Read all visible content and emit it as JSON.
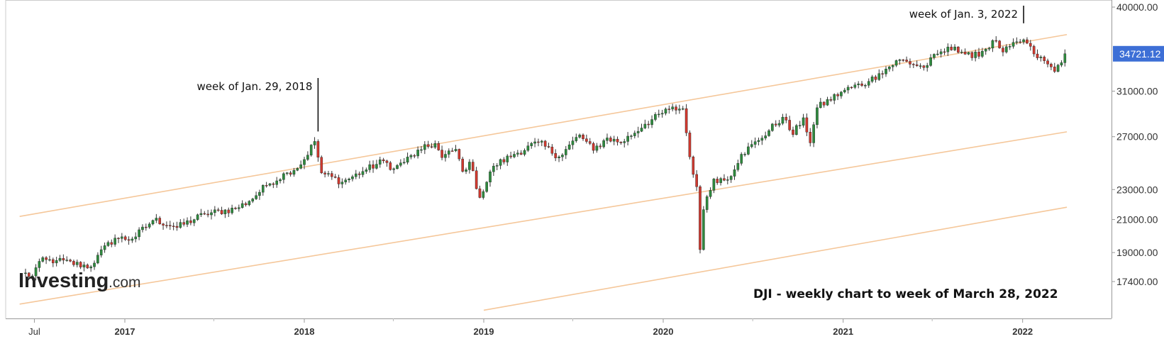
{
  "chart_data": {
    "type": "candlestick",
    "title": "DJI - weekly chart to week of March 28, 2022",
    "interval": "weekly",
    "y_scale": "log",
    "ylim": [
      16000,
      41000
    ],
    "y_ticks": [
      "40000.00",
      "31000.00",
      "27000.00",
      "23000.00",
      "21000.00",
      "19000.00",
      "17400.00"
    ],
    "x_ticks": [
      {
        "label": "Jul",
        "date": "2016-07-01",
        "major": false
      },
      {
        "label": "2017",
        "date": "2017-01-01",
        "major": true
      },
      {
        "label": "2018",
        "date": "2018-01-01",
        "major": true
      },
      {
        "label": "2019",
        "date": "2019-01-01",
        "major": true
      },
      {
        "label": "2020",
        "date": "2020-01-01",
        "major": true
      },
      {
        "label": "2021",
        "date": "2021-01-01",
        "major": true
      },
      {
        "label": "2022",
        "date": "2022-01-01",
        "major": true
      }
    ],
    "x_minor_ticks": [
      "2017-07-01",
      "2018-07-01",
      "2019-07-01",
      "2020-07-01",
      "2021-07-01"
    ],
    "last_price": {
      "value": 34721.12,
      "label": "34721.12",
      "color": "#3d6fd6"
    },
    "annotations": [
      {
        "text": "week of Jan. 29, 2018",
        "date": "2018-01-29",
        "value": 26616
      },
      {
        "text": "week of Jan. 3, 2022",
        "date": "2022-01-03",
        "value": 36953
      }
    ],
    "trendlines": [
      {
        "name": "upper",
        "start": {
          "date": "2016-06-01",
          "value": 21200
        },
        "end": {
          "date": "2022-04-01",
          "value": 36800
        },
        "color": "#f5c79a"
      },
      {
        "name": "middle",
        "start": {
          "date": "2016-06-01",
          "value": 16250
        },
        "end": {
          "date": "2022-04-01",
          "value": 27400
        },
        "color": "#f5c79a"
      },
      {
        "name": "lower",
        "start": {
          "date": "2019-01-01",
          "value": 15950
        },
        "end": {
          "date": "2022-04-01",
          "value": 21800
        },
        "color": "#f5c79a"
      }
    ],
    "colors": {
      "up": "#2e8b3e",
      "down": "#d0392f",
      "wick": "#333333"
    },
    "series": [
      {
        "name": "DJI",
        "anchors": [
          [
            "2016-06-06",
            17850
          ],
          [
            "2016-06-27",
            17700
          ],
          [
            "2016-07-11",
            18500
          ],
          [
            "2016-08-15",
            18550
          ],
          [
            "2016-10-24",
            18200
          ],
          [
            "2016-11-07",
            18850
          ],
          [
            "2016-12-12",
            19850
          ],
          [
            "2017-01-16",
            19800
          ],
          [
            "2017-03-01",
            21000
          ],
          [
            "2017-04-17",
            20500
          ],
          [
            "2017-06-12",
            21350
          ],
          [
            "2017-08-14",
            21700
          ],
          [
            "2017-09-11",
            22200
          ],
          [
            "2017-10-16",
            23300
          ],
          [
            "2017-11-27",
            24200
          ],
          [
            "2017-12-25",
            24800
          ],
          [
            "2018-01-22",
            26616
          ],
          [
            "2018-02-05",
            24190
          ],
          [
            "2018-03-19",
            23530
          ],
          [
            "2018-04-30",
            24300
          ],
          [
            "2018-06-11",
            25090
          ],
          [
            "2018-07-02",
            24500
          ],
          [
            "2018-08-27",
            25960
          ],
          [
            "2018-09-24",
            26450
          ],
          [
            "2018-10-08",
            25340
          ],
          [
            "2018-11-05",
            25990
          ],
          [
            "2018-11-19",
            24300
          ],
          [
            "2018-12-03",
            25000
          ],
          [
            "2018-12-24",
            22450
          ],
          [
            "2019-01-21",
            24700
          ],
          [
            "2019-03-04",
            25600
          ],
          [
            "2019-04-22",
            26550
          ],
          [
            "2019-06-03",
            25400
          ],
          [
            "2019-07-15",
            27150
          ],
          [
            "2019-08-12",
            25900
          ],
          [
            "2019-09-09",
            26900
          ],
          [
            "2019-10-07",
            26500
          ],
          [
            "2019-11-25",
            28050
          ],
          [
            "2020-01-13",
            29350
          ],
          [
            "2020-02-10",
            29400
          ],
          [
            "2020-02-24",
            25400
          ],
          [
            "2020-03-09",
            23200
          ],
          [
            "2020-03-16",
            19170
          ],
          [
            "2020-03-23",
            21640
          ],
          [
            "2020-04-13",
            23750
          ],
          [
            "2020-05-11",
            23700
          ],
          [
            "2020-06-08",
            25600
          ],
          [
            "2020-07-13",
            26700
          ],
          [
            "2020-08-31",
            28650
          ],
          [
            "2020-09-21",
            27170
          ],
          [
            "2020-10-12",
            28600
          ],
          [
            "2020-10-26",
            26500
          ],
          [
            "2020-11-09",
            29480
          ],
          [
            "2021-01-04",
            31100
          ],
          [
            "2021-02-22",
            31930
          ],
          [
            "2021-03-15",
            32700
          ],
          [
            "2021-04-26",
            34100
          ],
          [
            "2021-06-14",
            33300
          ],
          [
            "2021-07-12",
            34700
          ],
          [
            "2021-08-16",
            35450
          ],
          [
            "2021-09-20",
            34300
          ],
          [
            "2021-11-08",
            36100
          ],
          [
            "2021-11-22",
            34900
          ],
          [
            "2022-01-03",
            36231
          ],
          [
            "2022-01-24",
            34700
          ],
          [
            "2022-02-21",
            33650
          ],
          [
            "2022-03-07",
            32900
          ],
          [
            "2022-03-28",
            34721
          ]
        ]
      }
    ]
  },
  "logo": {
    "main": "Investing",
    "suffix": ".com"
  }
}
